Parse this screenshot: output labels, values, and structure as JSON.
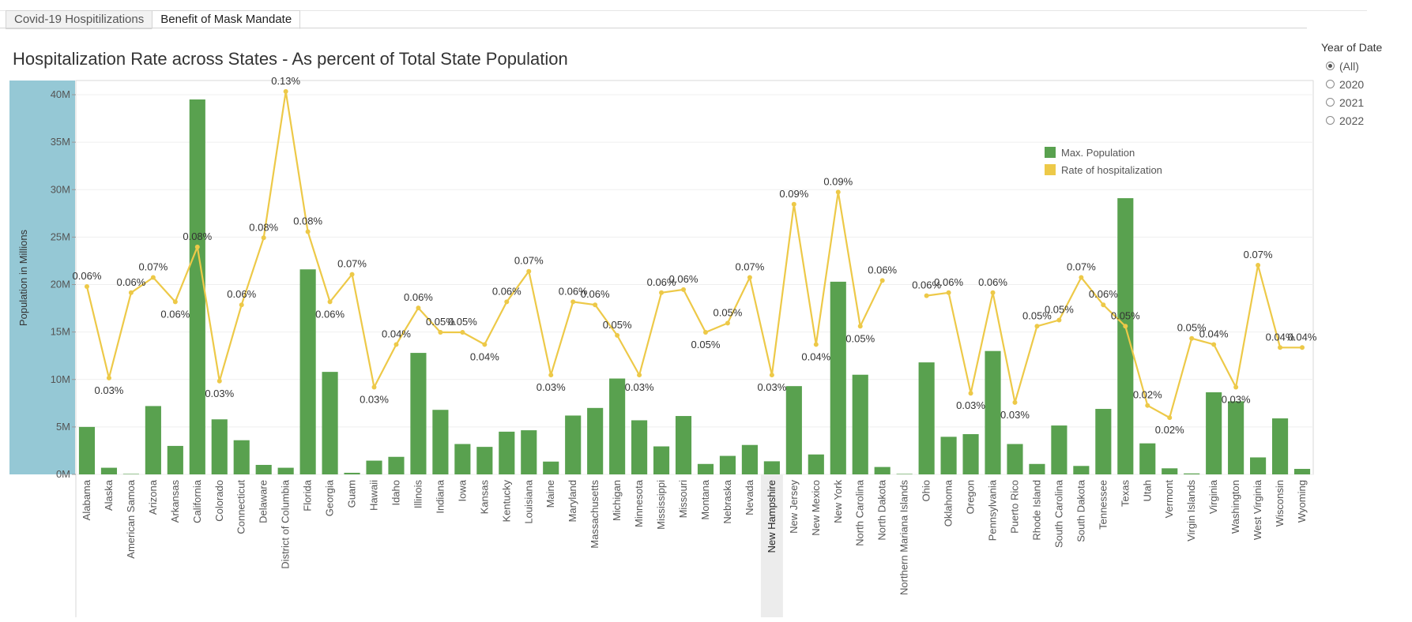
{
  "tabs": [
    {
      "label": "Covid-19 Hospitilizations",
      "active": false
    },
    {
      "label": "Benefit of Mask Mandate",
      "active": true
    }
  ],
  "filter": {
    "title": "Year of Date",
    "options": [
      {
        "label": "(All)",
        "checked": true
      },
      {
        "label": "2020",
        "checked": false
      },
      {
        "label": "2021",
        "checked": false
      },
      {
        "label": "2022",
        "checked": false
      }
    ]
  },
  "chart_data": {
    "type": "bar",
    "title": "Hospitalization Rate across States - As percent of Total State Population",
    "ylabel": "Population in Millions",
    "ylim": [
      0,
      40000000
    ],
    "yticks": [
      {
        "value": 0,
        "label": "0M"
      },
      {
        "value": 5000000,
        "label": "5M"
      },
      {
        "value": 10000000,
        "label": "10M"
      },
      {
        "value": 15000000,
        "label": "15M"
      },
      {
        "value": 20000000,
        "label": "20M"
      },
      {
        "value": 25000000,
        "label": "25M"
      },
      {
        "value": 30000000,
        "label": "30M"
      },
      {
        "value": 35000000,
        "label": "35M"
      },
      {
        "value": 40000000,
        "label": "40M"
      }
    ],
    "highlighted_category": "New Hampshire",
    "grid": true,
    "legend_position": "top-right",
    "categories": [
      "Alabama",
      "Alaska",
      "American Samoa",
      "Arizona",
      "Arkansas",
      "California",
      "Colorado",
      "Connecticut",
      "Delaware",
      "District of Columbia",
      "Florida",
      "Georgia",
      "Guam",
      "Hawaii",
      "Idaho",
      "Illinois",
      "Indiana",
      "Iowa",
      "Kansas",
      "Kentucky",
      "Louisiana",
      "Maine",
      "Maryland",
      "Massachusetts",
      "Michigan",
      "Minnesota",
      "Mississippi",
      "Missouri",
      "Montana",
      "Nebraska",
      "Nevada",
      "New Hampshire",
      "New Jersey",
      "New Mexico",
      "New York",
      "North Carolina",
      "North Dakota",
      "Northern Mariana Islands",
      "Ohio",
      "Oklahoma",
      "Oregon",
      "Pennsylvania",
      "Puerto Rico",
      "Rhode Island",
      "South Carolina",
      "South Dakota",
      "Tennessee",
      "Texas",
      "Utah",
      "Vermont",
      "Virgin Islands",
      "Virginia",
      "Washington",
      "West Virginia",
      "Wisconsin",
      "Wyoming"
    ],
    "series": [
      {
        "name": "Max. Population",
        "kind": "bar",
        "color": "#59A14F",
        "values": [
          5000000,
          700000,
          50000,
          7200000,
          3000000,
          39500000,
          5800000,
          3600000,
          1000000,
          700000,
          21600000,
          10800000,
          170000,
          1450000,
          1850000,
          12800000,
          6800000,
          3200000,
          2900000,
          4500000,
          4650000,
          1350000,
          6200000,
          7000000,
          10100000,
          5700000,
          2950000,
          6150000,
          1100000,
          1950000,
          3100000,
          1380000,
          9300000,
          2100000,
          20300000,
          10500000,
          780000,
          50000,
          11800000,
          3960000,
          4240000,
          13000000,
          3200000,
          1100000,
          5150000,
          890000,
          6900000,
          29100000,
          3270000,
          640000,
          100000,
          8650000,
          7700000,
          1790000,
          5900000,
          580000
        ]
      },
      {
        "name": "Rate of hospitalization",
        "kind": "line",
        "color": "#EDC948",
        "values": [
          0.063,
          0.033,
          0.061,
          0.066,
          0.058,
          0.076,
          0.032,
          0.057,
          0.079,
          0.127,
          0.081,
          0.058,
          0.067,
          0.03,
          0.044,
          0.056,
          0.048,
          0.048,
          0.044,
          0.058,
          0.068,
          0.034,
          0.058,
          0.057,
          0.047,
          0.034,
          0.061,
          0.062,
          0.048,
          0.051,
          0.066,
          0.034,
          0.09,
          0.044,
          0.094,
          0.05,
          0.065,
          null,
          0.06,
          0.061,
          0.028,
          0.061,
          0.025,
          0.05,
          0.052,
          0.066,
          0.057,
          0.05,
          0.024,
          0.02,
          0.046,
          0.044,
          0.03,
          0.07,
          0.043,
          0.043
        ],
        "labels": [
          "0.06%",
          "0.03%",
          "0.06%",
          "0.07%",
          "0.06%",
          "0.08%",
          "0.03%",
          "0.06%",
          "0.08%",
          "0.13%",
          "0.08%",
          "0.06%",
          "0.07%",
          "0.03%",
          "0.04%",
          "0.06%",
          "0.05%",
          "0.05%",
          "0.04%",
          "0.06%",
          "0.07%",
          "0.03%",
          "0.06%",
          "0.06%",
          "0.05%",
          "0.03%",
          "0.06%",
          "0.06%",
          "0.05%",
          "0.05%",
          "0.07%",
          "0.03%",
          "0.09%",
          "0.04%",
          "0.09%",
          "0.05%",
          "0.06%",
          "",
          "0.06%",
          "0.06%",
          "0.03%",
          "0.06%",
          "0.03%",
          "0.05%",
          "0.05%",
          "0.07%",
          "0.06%",
          "0.05%",
          "0.02%",
          "0.02%",
          "0.05%",
          "0.04%",
          "0.03%",
          "0.07%",
          "0.04%",
          "0.04%"
        ]
      }
    ]
  }
}
